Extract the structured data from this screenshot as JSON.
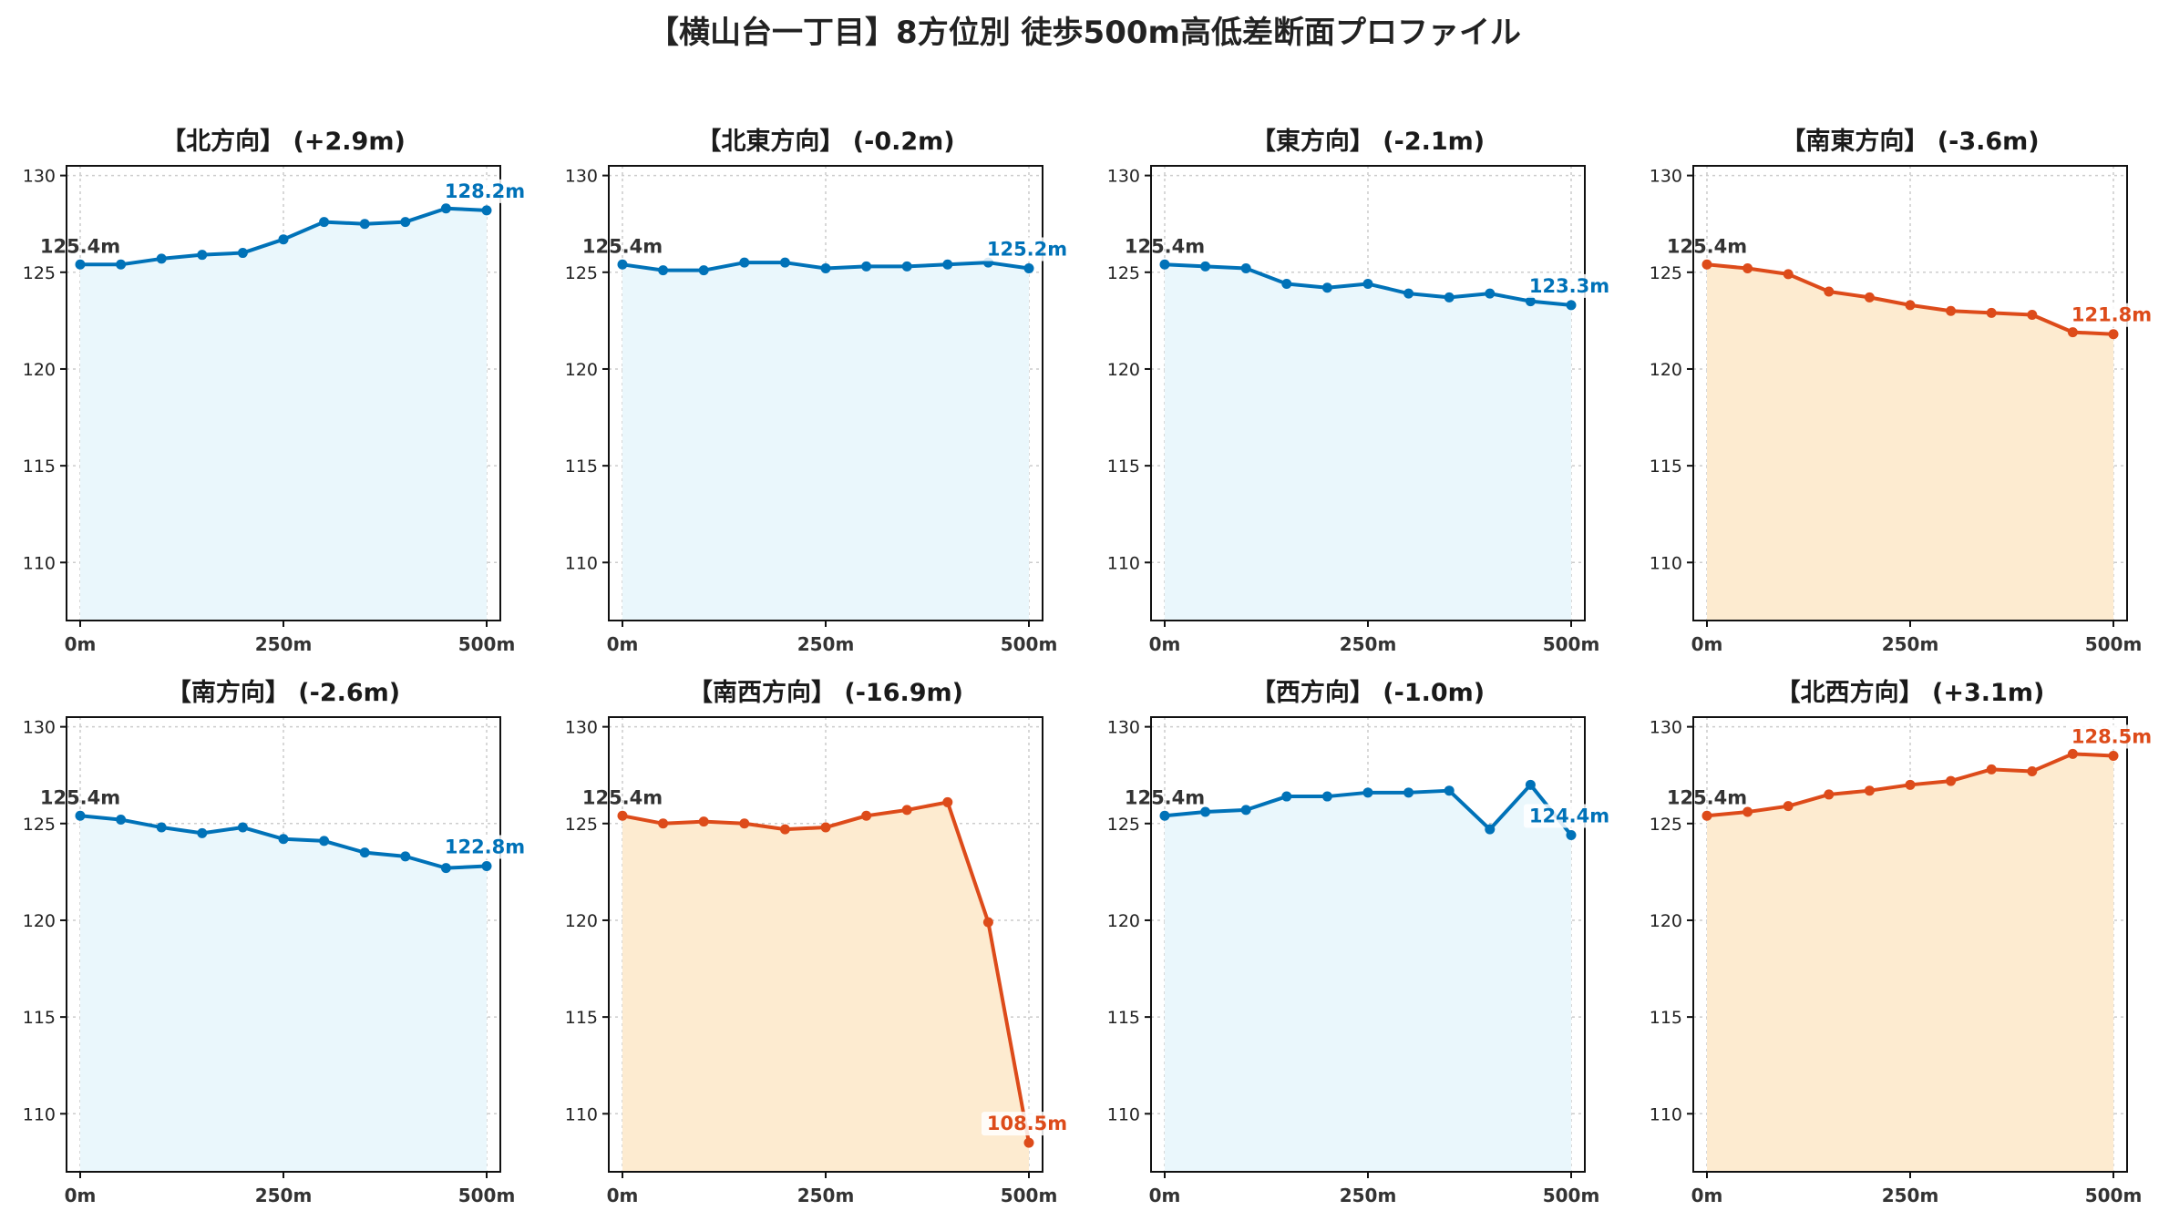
{
  "title": "【横山台一丁目】8方位別 徒歩500m高低差断面プロファイル",
  "colors": {
    "up": "#0072b8",
    "down": "#dd4b1a",
    "fill_up": "#eaf7fc",
    "fill_down": "#fdebd0",
    "grid": "#cccccc"
  },
  "chart_data": [
    {
      "type": "area",
      "title": "【北方向】 (+2.9m)",
      "trend": "up",
      "x": [
        0,
        50,
        100,
        150,
        200,
        250,
        300,
        350,
        400,
        450,
        500
      ],
      "y": [
        125.4,
        125.4,
        125.7,
        125.9,
        126.0,
        126.7,
        127.6,
        127.5,
        127.6,
        128.3,
        128.2
      ],
      "start_label": "125.4m",
      "end_label": "128.2m",
      "ylim": [
        107,
        130.5
      ],
      "yticks": [
        110,
        115,
        120,
        125,
        130
      ],
      "xticks": [
        0,
        250,
        500
      ],
      "xtick_labels": [
        "0m",
        "250m",
        "500m"
      ],
      "grid": true
    },
    {
      "type": "area",
      "title": "【北東方向】 (-0.2m)",
      "trend": "up",
      "x": [
        0,
        50,
        100,
        150,
        200,
        250,
        300,
        350,
        400,
        450,
        500
      ],
      "y": [
        125.4,
        125.1,
        125.1,
        125.5,
        125.5,
        125.2,
        125.3,
        125.3,
        125.4,
        125.5,
        125.2
      ],
      "start_label": "125.4m",
      "end_label": "125.2m",
      "ylim": [
        107,
        130.5
      ],
      "yticks": [
        110,
        115,
        120,
        125,
        130
      ],
      "xticks": [
        0,
        250,
        500
      ],
      "xtick_labels": [
        "0m",
        "250m",
        "500m"
      ],
      "grid": true
    },
    {
      "type": "area",
      "title": "【東方向】 (-2.1m)",
      "trend": "up",
      "x": [
        0,
        50,
        100,
        150,
        200,
        250,
        300,
        350,
        400,
        450,
        500
      ],
      "y": [
        125.4,
        125.3,
        125.2,
        124.4,
        124.2,
        124.4,
        123.9,
        123.7,
        123.9,
        123.5,
        123.3
      ],
      "start_label": "125.4m",
      "end_label": "123.3m",
      "ylim": [
        107,
        130.5
      ],
      "yticks": [
        110,
        115,
        120,
        125,
        130
      ],
      "xticks": [
        0,
        250,
        500
      ],
      "xtick_labels": [
        "0m",
        "250m",
        "500m"
      ],
      "grid": true
    },
    {
      "type": "area",
      "title": "【南東方向】 (-3.6m)",
      "trend": "down",
      "x": [
        0,
        50,
        100,
        150,
        200,
        250,
        300,
        350,
        400,
        450,
        500
      ],
      "y": [
        125.4,
        125.2,
        124.9,
        124.0,
        123.7,
        123.3,
        123.0,
        122.9,
        122.8,
        121.9,
        121.8
      ],
      "start_label": "125.4m",
      "end_label": "121.8m",
      "ylim": [
        107,
        130.5
      ],
      "yticks": [
        110,
        115,
        120,
        125,
        130
      ],
      "xticks": [
        0,
        250,
        500
      ],
      "xtick_labels": [
        "0m",
        "250m",
        "500m"
      ],
      "grid": true
    },
    {
      "type": "area",
      "title": "【南方向】 (-2.6m)",
      "trend": "up",
      "x": [
        0,
        50,
        100,
        150,
        200,
        250,
        300,
        350,
        400,
        450,
        500
      ],
      "y": [
        125.4,
        125.2,
        124.8,
        124.5,
        124.8,
        124.2,
        124.1,
        123.5,
        123.3,
        122.7,
        122.8
      ],
      "start_label": "125.4m",
      "end_label": "122.8m",
      "ylim": [
        107,
        130.5
      ],
      "yticks": [
        110,
        115,
        120,
        125,
        130
      ],
      "xticks": [
        0,
        250,
        500
      ],
      "xtick_labels": [
        "0m",
        "250m",
        "500m"
      ],
      "grid": true
    },
    {
      "type": "area",
      "title": "【南西方向】 (-16.9m)",
      "trend": "down",
      "x": [
        0,
        50,
        100,
        150,
        200,
        250,
        300,
        350,
        400,
        450,
        500
      ],
      "y": [
        125.4,
        125.0,
        125.1,
        125.0,
        124.7,
        124.8,
        125.4,
        125.7,
        126.1,
        119.9,
        108.5
      ],
      "start_label": "125.4m",
      "end_label": "108.5m",
      "ylim": [
        107,
        130.5
      ],
      "yticks": [
        110,
        115,
        120,
        125,
        130
      ],
      "xticks": [
        0,
        250,
        500
      ],
      "xtick_labels": [
        "0m",
        "250m",
        "500m"
      ],
      "grid": true
    },
    {
      "type": "area",
      "title": "【西方向】 (-1.0m)",
      "trend": "up",
      "x": [
        0,
        50,
        100,
        150,
        200,
        250,
        300,
        350,
        400,
        450,
        500
      ],
      "y": [
        125.4,
        125.6,
        125.7,
        126.4,
        126.4,
        126.6,
        126.6,
        126.7,
        124.7,
        127.0,
        124.4
      ],
      "start_label": "125.4m",
      "end_label": "124.4m",
      "ylim": [
        107,
        130.5
      ],
      "yticks": [
        110,
        115,
        120,
        125,
        130
      ],
      "xticks": [
        0,
        250,
        500
      ],
      "xtick_labels": [
        "0m",
        "250m",
        "500m"
      ],
      "grid": true
    },
    {
      "type": "area",
      "title": "【北西方向】 (+3.1m)",
      "trend": "down",
      "x": [
        0,
        50,
        100,
        150,
        200,
        250,
        300,
        350,
        400,
        450,
        500
      ],
      "y": [
        125.4,
        125.6,
        125.9,
        126.5,
        126.7,
        127.0,
        127.2,
        127.8,
        127.7,
        128.6,
        128.5
      ],
      "start_label": "125.4m",
      "end_label": "128.5m",
      "ylim": [
        107,
        130.5
      ],
      "yticks": [
        110,
        115,
        120,
        125,
        130
      ],
      "xticks": [
        0,
        250,
        500
      ],
      "xtick_labels": [
        "0m",
        "250m",
        "500m"
      ],
      "grid": true
    }
  ]
}
